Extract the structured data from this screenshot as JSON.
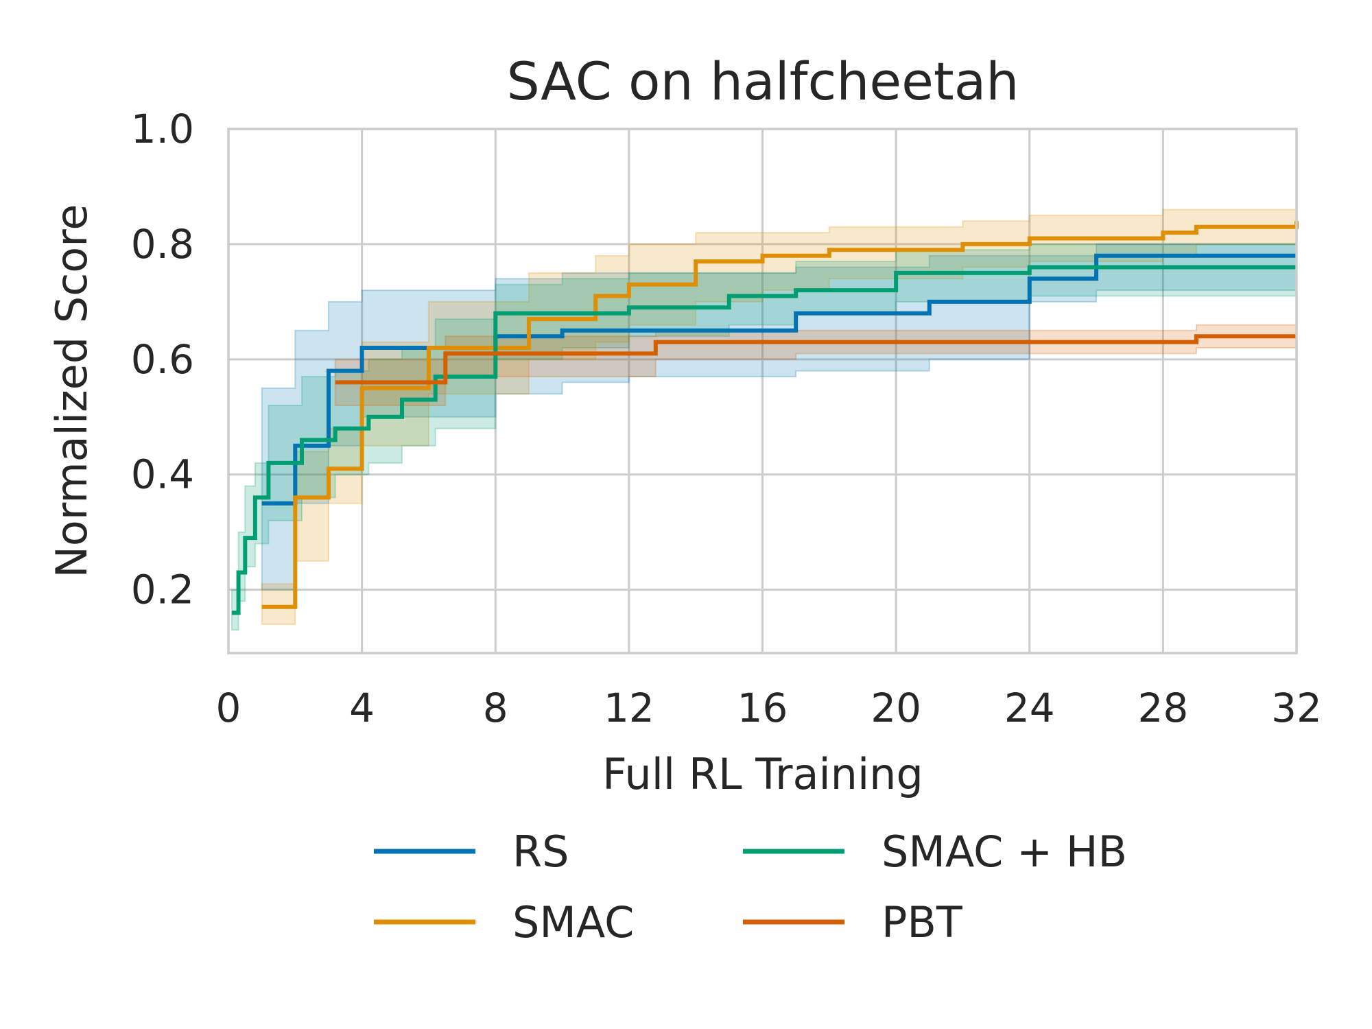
{
  "chart_data": {
    "type": "line",
    "title": "SAC on halfcheetah",
    "xlabel": "Full RL Training",
    "ylabel": "Normalized Score",
    "xlim": [
      0,
      32
    ],
    "ylim": [
      0.09,
      1.0
    ],
    "xticks": [
      0,
      4,
      8,
      12,
      16,
      20,
      24,
      28,
      32
    ],
    "yticks": [
      0.2,
      0.4,
      0.6,
      0.8,
      1.0
    ],
    "ytick_labels": [
      "0.2",
      "0.4",
      "0.6",
      "0.8",
      "1.0"
    ],
    "grid": true,
    "legend": "bottom-center",
    "step": true,
    "series": [
      {
        "name": "RS",
        "color": "#0173b2",
        "x": [
          1,
          2,
          3,
          4,
          8,
          10,
          12,
          17,
          21,
          24,
          26,
          32
        ],
        "y": [
          0.35,
          0.45,
          0.58,
          0.62,
          0.64,
          0.65,
          0.65,
          0.68,
          0.7,
          0.74,
          0.78,
          0.78
        ],
        "lower": [
          0.2,
          0.35,
          0.45,
          0.5,
          0.54,
          0.56,
          0.57,
          0.58,
          0.6,
          0.7,
          0.72,
          0.72
        ],
        "upper": [
          0.55,
          0.65,
          0.7,
          0.72,
          0.74,
          0.75,
          0.75,
          0.76,
          0.78,
          0.78,
          0.8,
          0.8
        ]
      },
      {
        "name": "SMAC",
        "color": "#de8f05",
        "x": [
          1,
          2,
          3,
          4,
          6,
          9,
          11,
          12,
          14,
          16,
          18,
          22,
          24,
          28,
          29,
          32
        ],
        "y": [
          0.17,
          0.36,
          0.41,
          0.55,
          0.62,
          0.67,
          0.71,
          0.73,
          0.77,
          0.78,
          0.79,
          0.8,
          0.81,
          0.82,
          0.83,
          0.84
        ],
        "lower": [
          0.14,
          0.25,
          0.35,
          0.45,
          0.54,
          0.6,
          0.63,
          0.66,
          0.7,
          0.72,
          0.74,
          0.76,
          0.77,
          0.78,
          0.8,
          0.8
        ],
        "upper": [
          0.21,
          0.44,
          0.48,
          0.63,
          0.7,
          0.75,
          0.78,
          0.8,
          0.82,
          0.82,
          0.83,
          0.84,
          0.85,
          0.86,
          0.86,
          0.87
        ]
      },
      {
        "name": "SMAC + HB",
        "color": "#029e73",
        "x": [
          0.1,
          0.3,
          0.5,
          0.8,
          1.2,
          2.2,
          3.2,
          4.2,
          5.2,
          6.2,
          8,
          10,
          12,
          15,
          17,
          20,
          24,
          32
        ],
        "y": [
          0.16,
          0.23,
          0.29,
          0.36,
          0.42,
          0.46,
          0.48,
          0.5,
          0.53,
          0.57,
          0.68,
          0.68,
          0.69,
          0.71,
          0.72,
          0.75,
          0.76,
          0.76
        ],
        "lower": [
          0.13,
          0.18,
          0.24,
          0.28,
          0.32,
          0.36,
          0.4,
          0.42,
          0.45,
          0.48,
          0.6,
          0.62,
          0.64,
          0.66,
          0.68,
          0.7,
          0.71,
          0.71
        ],
        "upper": [
          0.2,
          0.3,
          0.38,
          0.42,
          0.52,
          0.57,
          0.58,
          0.6,
          0.62,
          0.67,
          0.73,
          0.74,
          0.75,
          0.75,
          0.77,
          0.79,
          0.8,
          0.8
        ]
      },
      {
        "name": "PBT",
        "color": "#d55e00",
        "x": [
          3.2,
          6.5,
          12.8,
          17,
          25,
          29,
          32
        ],
        "y": [
          0.56,
          0.61,
          0.63,
          0.63,
          0.63,
          0.64,
          0.64
        ],
        "lower": [
          0.52,
          0.57,
          0.6,
          0.61,
          0.61,
          0.62,
          0.62
        ],
        "upper": [
          0.6,
          0.64,
          0.65,
          0.65,
          0.65,
          0.66,
          0.66
        ]
      }
    ]
  }
}
